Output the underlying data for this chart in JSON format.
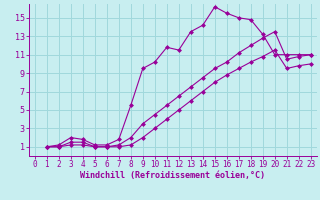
{
  "xlabel": "Windchill (Refroidissement éolien,°C)",
  "bg_color": "#c8eef0",
  "line_color": "#990099",
  "grid_color": "#a0d8dc",
  "xlim": [
    -0.5,
    23.5
  ],
  "ylim": [
    0,
    16.5
  ],
  "xticks": [
    0,
    1,
    2,
    3,
    4,
    5,
    6,
    7,
    8,
    9,
    10,
    11,
    12,
    13,
    14,
    15,
    16,
    17,
    18,
    19,
    20,
    21,
    22,
    23
  ],
  "yticks": [
    1,
    3,
    5,
    7,
    9,
    11,
    13,
    15
  ],
  "line1_x": [
    1,
    2,
    3,
    4,
    5,
    6,
    7,
    8,
    9,
    10,
    11,
    12,
    13,
    14,
    15,
    16,
    17,
    18,
    19,
    20,
    21,
    22,
    23
  ],
  "line1_y": [
    1.0,
    1.2,
    2.0,
    1.8,
    1.2,
    1.2,
    1.8,
    5.5,
    9.5,
    10.2,
    11.8,
    11.5,
    13.5,
    14.2,
    16.2,
    15.5,
    15.0,
    14.8,
    13.2,
    11.0,
    11.0,
    11.0,
    11.0
  ],
  "line2_x": [
    1,
    2,
    3,
    4,
    5,
    6,
    7,
    8,
    9,
    10,
    11,
    12,
    13,
    14,
    15,
    16,
    17,
    18,
    19,
    20,
    21,
    22,
    23
  ],
  "line2_y": [
    1.0,
    1.0,
    1.5,
    1.5,
    1.0,
    1.0,
    1.2,
    2.0,
    3.5,
    4.5,
    5.5,
    6.5,
    7.5,
    8.5,
    9.5,
    10.2,
    11.2,
    12.0,
    12.8,
    13.5,
    10.5,
    10.8,
    11.0
  ],
  "line3_x": [
    1,
    2,
    3,
    4,
    5,
    6,
    7,
    8,
    9,
    10,
    11,
    12,
    13,
    14,
    15,
    16,
    17,
    18,
    19,
    20,
    21,
    22,
    23
  ],
  "line3_y": [
    1.0,
    1.0,
    1.2,
    1.2,
    1.0,
    1.0,
    1.0,
    1.2,
    2.0,
    3.0,
    4.0,
    5.0,
    6.0,
    7.0,
    8.0,
    8.8,
    9.5,
    10.2,
    10.8,
    11.5,
    9.5,
    9.8,
    10.0
  ],
  "marker": "D",
  "markersize": 2.5,
  "linewidth": 0.8,
  "tick_fontsize": 5.5,
  "label_fontsize": 6.0
}
